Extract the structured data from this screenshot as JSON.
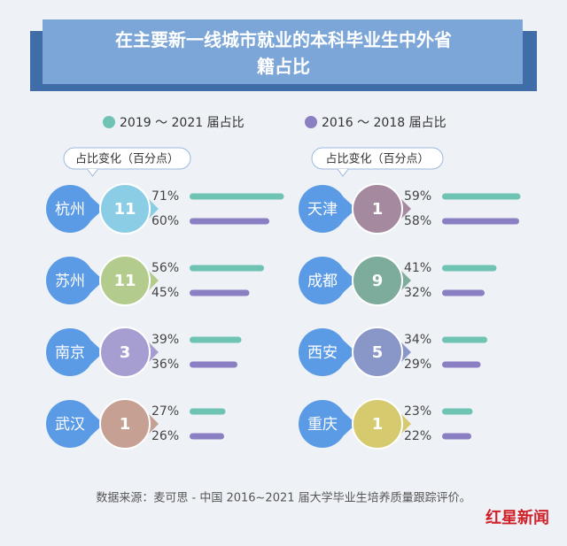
{
  "chart_data": {
    "type": "bar",
    "title": "在主要新一线城市就业的本科毕业生中外省籍占比",
    "categories": [
      "杭州",
      "苏州",
      "南京",
      "武汉",
      "天津",
      "成都",
      "西安",
      "重庆"
    ],
    "category_color": "#5b9be6",
    "series": [
      {
        "name": "2019 ～ 2021 届占比",
        "color": "#6ec3b3",
        "values": [
          71,
          56,
          39,
          27,
          59,
          41,
          34,
          23
        ],
        "value_labels": [
          "71%",
          "56%",
          "39%",
          "27%",
          "59%",
          "41%",
          "34%",
          "23%"
        ]
      },
      {
        "name": "2016 ～ 2018 届占比",
        "color": "#8a7fc2",
        "values": [
          60,
          45,
          36,
          26,
          58,
          32,
          29,
          22
        ],
        "value_labels": [
          "60%",
          "45%",
          "36%",
          "26%",
          "58%",
          "32%",
          "29%",
          "22%"
        ]
      }
    ],
    "change": {
      "label": "占比变化（百分点）",
      "values": [
        11,
        11,
        3,
        1,
        1,
        9,
        5,
        1
      ],
      "colors": [
        "#8ccde6",
        "#b3cc8d",
        "#a69ed0",
        "#c6a093",
        "#a5899f",
        "#7dab9c",
        "#8996c8",
        "#d6ca6e"
      ]
    },
    "source": "数据来源：麦可思 - 中国 2016~2021 届大学毕业生培养质量跟踪评价。",
    "logo": "红星新闻"
  }
}
